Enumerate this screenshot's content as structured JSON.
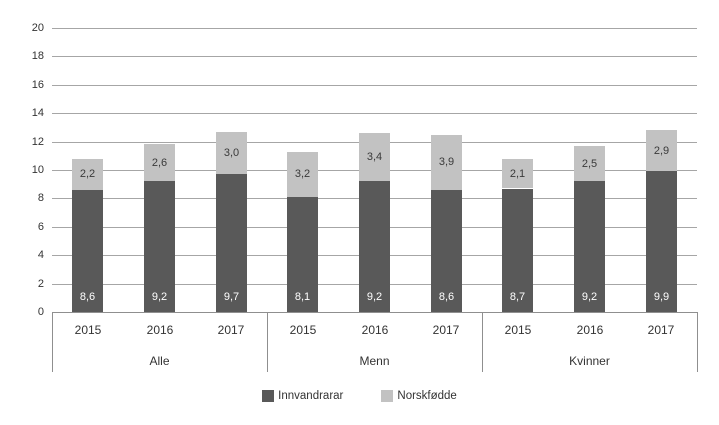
{
  "chart_data": {
    "type": "bar",
    "stacked": true,
    "title": "",
    "xlabel": "",
    "ylabel": "",
    "groups": [
      "Alle",
      "Menn",
      "Kvinner"
    ],
    "categories_per_group": [
      "2015",
      "2016",
      "2017"
    ],
    "series": [
      {
        "name": "Innvandrarar",
        "color": "#595959",
        "label_color": "#ffffff",
        "values": [
          [
            8.6,
            9.2,
            9.7
          ],
          [
            8.1,
            9.2,
            8.6
          ],
          [
            8.7,
            9.2,
            9.9
          ]
        ]
      },
      {
        "name": "Norskfødde",
        "color": "#c2c2c2",
        "label_color": "#3a3a3a",
        "values": [
          [
            2.2,
            2.6,
            3.0
          ],
          [
            3.2,
            3.4,
            3.9
          ],
          [
            2.1,
            2.5,
            2.9
          ]
        ]
      }
    ],
    "ylim": [
      0,
      20
    ],
    "ytick_step": 2,
    "decimal_separator": ",",
    "grid": true,
    "legend_position": "bottom",
    "gridline_color": "#a6a6a6",
    "axis_line_color": "#8f8f8f",
    "tick_label_color": "#333333",
    "background_color": "#ffffff"
  }
}
